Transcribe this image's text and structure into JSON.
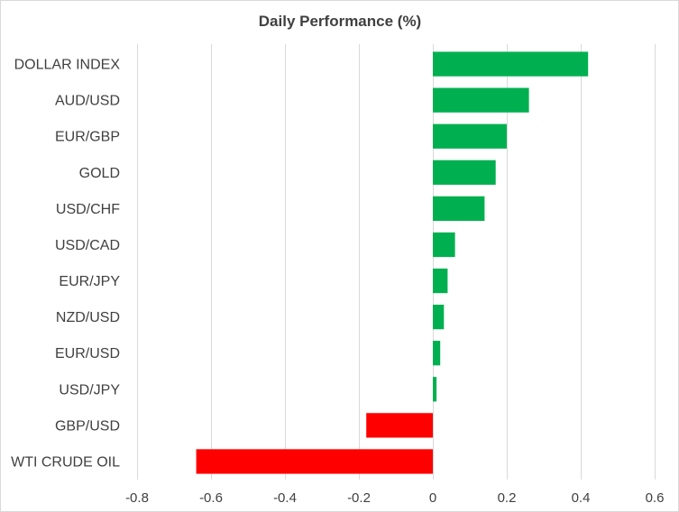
{
  "chart_data": {
    "type": "bar",
    "orientation": "horizontal",
    "title": "Daily Performance (%)",
    "xlabel": "",
    "ylabel": "",
    "categories": [
      "DOLLAR INDEX",
      "AUD/USD",
      "EUR/GBP",
      "GOLD",
      "USD/CHF",
      "USD/CAD",
      "EUR/JPY",
      "NZD/USD",
      "EUR/USD",
      "USD/JPY",
      "GBP/USD",
      "WTI CRUDE OIL"
    ],
    "values": [
      0.42,
      0.26,
      0.2,
      0.17,
      0.14,
      0.06,
      0.04,
      0.03,
      0.02,
      0.01,
      -0.18,
      -0.64
    ],
    "xlim": [
      -0.8,
      0.6
    ],
    "xticks": [
      -0.8,
      -0.6,
      -0.4,
      -0.2,
      0,
      0.2,
      0.4,
      0.6
    ],
    "xtick_labels": [
      "-0.8",
      "-0.6",
      "-0.4",
      "-0.2",
      "0",
      "0.2",
      "0.4",
      "0.6"
    ],
    "grid": true,
    "legend": "none",
    "colors": {
      "positive": "#00b050",
      "negative": "#ff0000",
      "grid": "#d9d9d9",
      "text": "#404040"
    }
  }
}
